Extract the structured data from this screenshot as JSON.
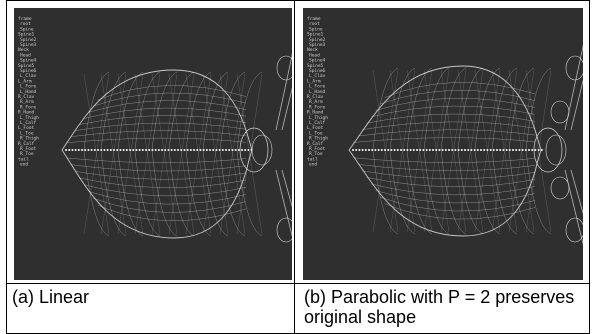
{
  "panels": [
    {
      "id": "linear",
      "caption": "(a) Linear",
      "menu_items": [
        "frame",
        "root",
        "Spine",
        "Spine1",
        "Spine2",
        "Spine3",
        "Neck",
        "Head",
        "Spine4",
        "Spine5",
        "Spine6",
        "L_Clav",
        "L_Arm",
        "L_Fore",
        "L_Hand",
        "R_Clav",
        "R_Arm",
        "R_Fore",
        "R_Hand",
        "L_Thigh",
        "L_Calf",
        "L_Foot",
        "L_Toe",
        "R_Thigh",
        "R_Calf",
        "R_Foot",
        "R_Toe",
        "tail",
        "end"
      ]
    },
    {
      "id": "parabolic",
      "caption": "(b) Parabolic with P = 2 preserves original shape",
      "menu_items": [
        "frame",
        "root",
        "Spine",
        "Spine1",
        "Spine2",
        "Spine3",
        "Neck",
        "Head",
        "Spine4",
        "Spine5",
        "Spine6",
        "L_Clav",
        "L_Arm",
        "L_Fore",
        "L_Hand",
        "R_Clav",
        "R_Arm",
        "R_Fore",
        "R_Hand",
        "L_Thigh",
        "L_Calf",
        "L_Foot",
        "L_Toe",
        "R_Thigh",
        "R_Calf",
        "R_Foot",
        "R_Toe",
        "tail",
        "end"
      ]
    }
  ],
  "colors": {
    "viewport_bg": "#2f2f2f",
    "wire": "#d8d8d8",
    "menu_text": "#cfcfcf"
  }
}
